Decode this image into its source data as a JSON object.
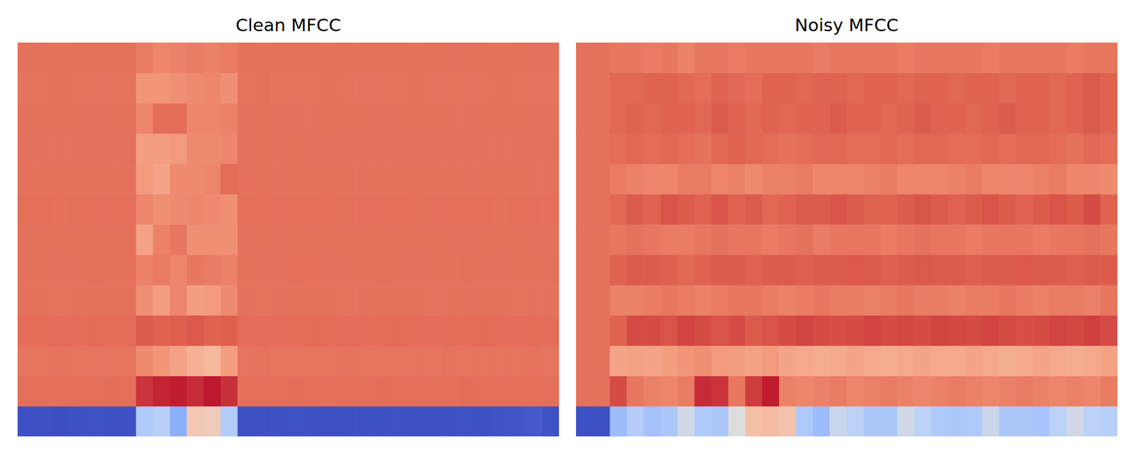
{
  "chart_data": [
    {
      "type": "heatmap",
      "title": "Clean MFCC",
      "tick_labels": false,
      "color_range": [
        -650,
        150
      ],
      "cells": [
        [
          -640,
          -642,
          -645,
          -640,
          -638,
          -640,
          -642,
          -330,
          -310,
          -420,
          -200,
          -210,
          -320,
          -640,
          -642,
          -640,
          -638,
          -640,
          -644,
          -640,
          -642,
          -640,
          -638,
          -640,
          -642,
          -640,
          -638,
          -640,
          -636,
          -630,
          -620,
          -635
        ],
        [
          5,
          5,
          5,
          4,
          5,
          6,
          5,
          90,
          110,
          120,
          100,
          125,
          95,
          5,
          4,
          5,
          6,
          5,
          4,
          5,
          5,
          6,
          5,
          4,
          5,
          5,
          6,
          5,
          4,
          5,
          5,
          5
        ],
        [
          -5,
          -5,
          -4,
          -5,
          -6,
          -5,
          -5,
          -50,
          -70,
          -100,
          -140,
          -160,
          -90,
          -5,
          -4,
          -5,
          -5,
          -6,
          -5,
          -4,
          -5,
          -5,
          -5,
          -6,
          -5,
          -4,
          -5,
          -5,
          -6,
          -5,
          -4,
          -5
        ],
        [
          10,
          10,
          9,
          10,
          11,
          10,
          10,
          40,
          30,
          35,
          45,
          30,
          35,
          10,
          9,
          10,
          10,
          11,
          10,
          9,
          10,
          10,
          11,
          10,
          9,
          10,
          10,
          11,
          10,
          9,
          10,
          10
        ],
        [
          -2,
          -2,
          -3,
          -2,
          -2,
          -1,
          -2,
          -60,
          -90,
          -40,
          -90,
          -80,
          -50,
          -2,
          -3,
          -2,
          -2,
          -1,
          -2,
          -3,
          -2,
          -2,
          -1,
          -2,
          -3,
          -2,
          -2,
          -1,
          -2,
          -3,
          -2,
          -2
        ],
        [
          3,
          3,
          2,
          3,
          4,
          3,
          3,
          -30,
          -20,
          -40,
          -10,
          -20,
          -30,
          3,
          2,
          3,
          4,
          3,
          2,
          3,
          3,
          4,
          3,
          2,
          3,
          3,
          4,
          3,
          2,
          3,
          3,
          3
        ],
        [
          0,
          0,
          1,
          0,
          -1,
          0,
          0,
          -100,
          -30,
          -10,
          -60,
          -60,
          -60,
          0,
          1,
          0,
          -1,
          0,
          1,
          0,
          0,
          -1,
          0,
          1,
          0,
          0,
          -1,
          0,
          1,
          0,
          0,
          0
        ],
        [
          4,
          4,
          3,
          4,
          5,
          4,
          4,
          -40,
          -60,
          -50,
          -40,
          -50,
          -60,
          4,
          3,
          4,
          5,
          4,
          3,
          4,
          4,
          5,
          4,
          3,
          4,
          4,
          5,
          4,
          3,
          4,
          4,
          4
        ],
        [
          -1,
          -1,
          0,
          -1,
          -2,
          -1,
          -1,
          -80,
          -110,
          -50,
          -50,
          -40,
          10,
          -1,
          0,
          -1,
          -2,
          -1,
          0,
          -1,
          -1,
          -2,
          -1,
          0,
          -1,
          -1,
          -2,
          -1,
          0,
          -1,
          -1,
          -1
        ],
        [
          2,
          2,
          1,
          2,
          3,
          2,
          2,
          -90,
          -90,
          -80,
          -50,
          -50,
          -40,
          2,
          1,
          2,
          3,
          2,
          1,
          2,
          2,
          3,
          2,
          1,
          2,
          2,
          3,
          2,
          1,
          2,
          2,
          2
        ],
        [
          1,
          1,
          0,
          1,
          2,
          1,
          1,
          -40,
          10,
          10,
          -40,
          -40,
          -30,
          1,
          0,
          1,
          2,
          1,
          0,
          1,
          1,
          2,
          1,
          0,
          1,
          1,
          2,
          1,
          0,
          1,
          1,
          1
        ],
        [
          -3,
          -3,
          -2,
          -3,
          -4,
          -3,
          -3,
          -70,
          -70,
          -60,
          -50,
          -40,
          -60,
          -3,
          -2,
          -3,
          -4,
          -3,
          -2,
          -3,
          -3,
          -4,
          -3,
          -2,
          -3,
          -3,
          -4,
          -3,
          -2,
          -3,
          -3,
          -3
        ],
        [
          0,
          0,
          -1,
          0,
          1,
          0,
          0,
          -20,
          -40,
          -30,
          -20,
          -30,
          -20,
          0,
          -1,
          0,
          1,
          0,
          -1,
          0,
          0,
          1,
          0,
          -1,
          0,
          0,
          1,
          0,
          -1,
          0,
          0,
          0
        ]
      ]
    },
    {
      "type": "heatmap",
      "title": "Noisy MFCC",
      "tick_labels": false,
      "color_range": [
        -650,
        150
      ],
      "cells": [
        [
          -640,
          -640,
          -380,
          -320,
          -360,
          -340,
          -270,
          -330,
          -340,
          -250,
          -180,
          -170,
          -190,
          -330,
          -380,
          -280,
          -300,
          -340,
          -340,
          -270,
          -300,
          -330,
          -340,
          -330,
          -280,
          -340,
          -340,
          -350,
          -300,
          -270,
          -300,
          -310
        ],
        [
          0,
          0,
          60,
          -10,
          -30,
          -40,
          -20,
          100,
          90,
          -10,
          80,
          120,
          -30,
          -40,
          -30,
          -20,
          -40,
          -30,
          -20,
          -30,
          -40,
          -30,
          -20,
          -30,
          -40,
          -30,
          -20,
          -30,
          -40,
          -30,
          -40,
          -20
        ],
        [
          0,
          0,
          -110,
          -100,
          -110,
          -90,
          -70,
          -60,
          -80,
          -90,
          -100,
          -80,
          -110,
          -120,
          -130,
          -120,
          -110,
          -120,
          -130,
          -120,
          -110,
          -120,
          -120,
          -110,
          -120,
          -130,
          -120,
          -110,
          -120,
          -130,
          -120,
          -100
        ],
        [
          0,
          0,
          30,
          60,
          60,
          50,
          70,
          60,
          50,
          60,
          40,
          50,
          60,
          70,
          60,
          55,
          60,
          70,
          60,
          65,
          60,
          70,
          65,
          60,
          70,
          60,
          55,
          60,
          70,
          65,
          75,
          60
        ],
        [
          0,
          0,
          -30,
          -30,
          -20,
          -10,
          -20,
          -30,
          -20,
          -10,
          -10,
          -20,
          -30,
          -20,
          -10,
          -20,
          -20,
          -30,
          -20,
          -10,
          -20,
          -20,
          -30,
          -20,
          -20,
          -10,
          -20,
          -30,
          -20,
          -20,
          -30,
          -10
        ],
        [
          0,
          0,
          30,
          40,
          40,
          35,
          20,
          30,
          40,
          40,
          30,
          40,
          40,
          35,
          40,
          40,
          45,
          40,
          35,
          40,
          45,
          40,
          40,
          35,
          40,
          40,
          45,
          40,
          40,
          35,
          40,
          40
        ],
        [
          0,
          0,
          -10,
          0,
          -10,
          -20,
          -20,
          -10,
          0,
          -10,
          -10,
          -20,
          -10,
          0,
          -20,
          -10,
          -10,
          -10,
          -20,
          -10,
          0,
          -10,
          -10,
          -20,
          -10,
          -10,
          -10,
          -20,
          -10,
          -10,
          0,
          -10
        ],
        [
          0,
          0,
          20,
          40,
          30,
          50,
          40,
          30,
          50,
          30,
          40,
          20,
          30,
          40,
          40,
          50,
          40,
          30,
          30,
          40,
          50,
          40,
          30,
          40,
          50,
          40,
          30,
          40,
          50,
          40,
          60,
          30
        ],
        [
          0,
          0,
          -20,
          -30,
          -40,
          -40,
          -20,
          -20,
          -40,
          -30,
          -50,
          -30,
          -30,
          -20,
          -40,
          -40,
          -40,
          -30,
          -20,
          -40,
          -40,
          -40,
          -30,
          -20,
          -40,
          -40,
          -40,
          -30,
          -20,
          -40,
          -40,
          -50
        ],
        [
          0,
          0,
          10,
          20,
          10,
          20,
          10,
          0,
          20,
          30,
          20,
          10,
          0,
          10,
          20,
          20,
          10,
          10,
          20,
          10,
          20,
          20,
          10,
          10,
          20,
          10,
          20,
          20,
          10,
          0,
          20,
          10
        ],
        [
          0,
          0,
          20,
          30,
          20,
          30,
          30,
          20,
          40,
          30,
          20,
          30,
          20,
          30,
          30,
          40,
          30,
          30,
          20,
          30,
          40,
          30,
          30,
          20,
          30,
          40,
          30,
          30,
          20,
          30,
          40,
          30
        ],
        [
          0,
          0,
          20,
          20,
          30,
          30,
          20,
          10,
          30,
          20,
          10,
          30,
          30,
          20,
          30,
          30,
          20,
          30,
          30,
          20,
          30,
          30,
          20,
          30,
          30,
          20,
          30,
          30,
          20,
          30,
          40,
          30
        ],
        [
          0,
          0,
          -10,
          -10,
          -20,
          -10,
          -30,
          -10,
          -10,
          -20,
          -10,
          -10,
          -10,
          -10,
          -20,
          -10,
          -10,
          -10,
          -10,
          -20,
          -10,
          -10,
          -10,
          -10,
          -20,
          -10,
          -10,
          -10,
          -10,
          -20,
          -10,
          -10
        ]
      ]
    }
  ]
}
